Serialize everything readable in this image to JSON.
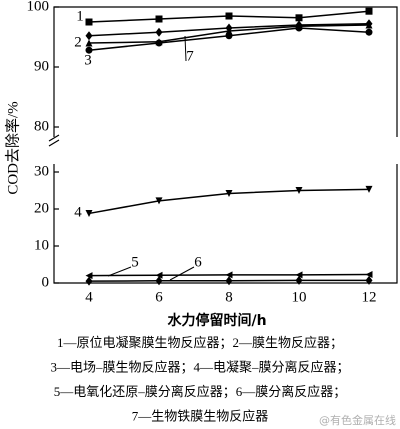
{
  "chart_data": {
    "type": "line",
    "x_label": "水力停留时间/h",
    "y_label": "COD去除率/%",
    "x": [
      4,
      6,
      8,
      10,
      12
    ],
    "xlim": [
      3,
      12.8
    ],
    "xticks": [
      4,
      6,
      8,
      10,
      12
    ],
    "ylim": [
      0,
      100
    ],
    "yticks": [
      0,
      10,
      20,
      30,
      80,
      90,
      100
    ],
    "axis_break": [
      30,
      80
    ],
    "series": [
      {
        "name": "1",
        "color": "#000000",
        "marker": "square",
        "values": [
          97.5,
          98,
          98.5,
          98.2,
          99.3
        ]
      },
      {
        "name": "2",
        "color": "#000000",
        "marker": "diamond",
        "values": [
          95.2,
          95.8,
          96.5,
          97,
          97.2
        ]
      },
      {
        "name": "3",
        "color": "#000000",
        "marker": "circle",
        "values": [
          92.8,
          94,
          95.2,
          96.5,
          95.8
        ]
      },
      {
        "name": "4",
        "color": "#000000",
        "marker": "triangle-down",
        "values": [
          18.8,
          22.2,
          24.2,
          25,
          25.3
        ]
      },
      {
        "name": "5",
        "color": "#000000",
        "marker": "triangle-left",
        "values": [
          2,
          2.1,
          2.2,
          2.2,
          2.3
        ]
      },
      {
        "name": "6",
        "color": "#000000",
        "marker": "diamond",
        "values": [
          0.5,
          0.6,
          0.6,
          0.7,
          0.7
        ]
      },
      {
        "name": "7",
        "color": "#000000",
        "marker": "triangle-up",
        "values": [
          94,
          94.2,
          96,
          96.8,
          97
        ]
      }
    ],
    "caption": [
      "1—原位电凝聚膜生物反应器；2—膜生物反应器；",
      "3—电场–膜生物反应器；4—电凝聚–膜分离反应器；",
      "5—电氧化还原–膜分离反应器；6—膜分离反应器；",
      "7—生物铁膜生物反应器"
    ],
    "watermark": "@有色金属在线"
  }
}
